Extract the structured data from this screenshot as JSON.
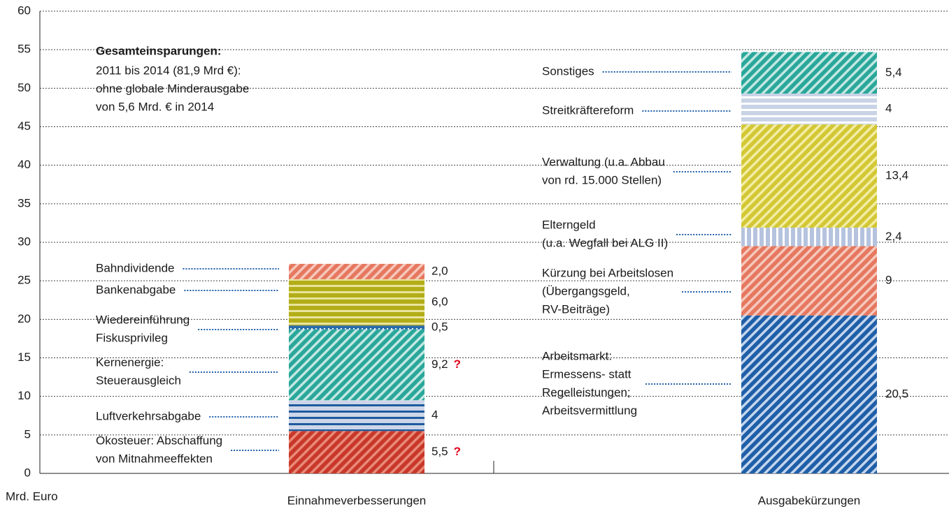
{
  "chart_data": {
    "type": "stacked-bar",
    "y_label": "Mrd. Euro",
    "categories": [
      "Einnahmeverbesserungen",
      "Ausgabekürzungen"
    ],
    "ylim": [
      0,
      60
    ],
    "yticks": [
      0,
      5,
      10,
      15,
      20,
      25,
      30,
      35,
      40,
      45,
      50,
      55,
      60
    ],
    "grid": true,
    "annotation": {
      "title": "Gesamteinsparungen:",
      "lines": [
        "2011 bis 2014 (81,9 Mrd €):",
        "ohne globale Minderausgabe",
        "von 5,6 Mrd. € in 2014"
      ]
    },
    "series": [
      {
        "name": [
          "Ökosteuer: Abschaffung",
          "von Mitnahmeeffekten"
        ],
        "values": [
          5.5,
          null
        ],
        "value_labels": [
          "5,5",
          null
        ],
        "note": "?",
        "color": "#c8382a",
        "pattern": "diagonal",
        "pattern_color": "#e98a78"
      },
      {
        "name": [
          "Luftverkehrsabgabe"
        ],
        "values": [
          4,
          null
        ],
        "color": "#cdd6e8",
        "pattern": "horizontal",
        "pattern_color": "#1d5a9e"
      },
      {
        "name": [
          "Kernenergie:",
          "Steuerausgleich"
        ],
        "values": [
          9.2,
          null
        ],
        "value_labels": [
          "9,2",
          null
        ],
        "note": "?",
        "color": "#2aa79b",
        "pattern": "diagonal",
        "pattern_color": "#c3e7e2"
      },
      {
        "name": [
          "Wiedereinführung",
          "Fiskusprivileg"
        ],
        "values": [
          0.5,
          null
        ],
        "value_labels": [
          "0,5",
          null
        ],
        "color": "#2a6aa8",
        "pattern": "dots",
        "pattern_color": "#ffffff"
      },
      {
        "name": [
          "Bankenabgabe"
        ],
        "values": [
          6.0,
          null
        ],
        "value_labels": [
          "6,0",
          null
        ],
        "color": "#b3ad18",
        "pattern": "horizontal",
        "pattern_color": "#e8e49c"
      },
      {
        "name": [
          "Bahndividende"
        ],
        "values": [
          2.0,
          null
        ],
        "value_labels": [
          "2,0",
          null
        ],
        "color": "#e5785f",
        "pattern": "diagonal",
        "pattern_color": "#f6c8bc"
      },
      {
        "name": [
          "Arbeitsmarkt:",
          "Ermessens- statt",
          "Regelleistungen;",
          "Arbeitsvermittlung"
        ],
        "values": [
          null,
          20.5
        ],
        "value_labels": [
          null,
          "20,5"
        ],
        "color": "#1f5fa8",
        "pattern": "diagonal",
        "pattern_color": "#c5d6ee"
      },
      {
        "name": [
          "Kürzung bei Arbeitslosen",
          "(Übergangsgeld,",
          "RV-Beiträge)"
        ],
        "values": [
          null,
          9
        ],
        "color": "#e5785f",
        "pattern": "diagonal",
        "pattern_color": "#f6c8bc"
      },
      {
        "name": [
          "Elterngeld",
          "(u.a. Wegfall bei ALG II)"
        ],
        "values": [
          null,
          2.4
        ],
        "value_labels": [
          null,
          "2,4"
        ],
        "color": "#b5c3de",
        "pattern": "vertical",
        "pattern_color": "#ffffff"
      },
      {
        "name": [
          "Verwaltung (u.a. Abbau",
          "von rd. 15.000 Stellen)"
        ],
        "values": [
          null,
          13.4
        ],
        "value_labels": [
          null,
          "13,4"
        ],
        "color": "#d3c735",
        "pattern": "diagonal",
        "pattern_color": "#f2eda4"
      },
      {
        "name": [
          "Streitkräftereform"
        ],
        "values": [
          null,
          4
        ],
        "color": "#c9d3e6",
        "pattern": "horizontal",
        "pattern_color": "#ffffff"
      },
      {
        "name": [
          "Sonstiges"
        ],
        "values": [
          null,
          5.4
        ],
        "value_labels": [
          null,
          "5,4"
        ],
        "color": "#2aa79b",
        "pattern": "diagonal",
        "pattern_color": "#c3e7e2"
      }
    ]
  }
}
